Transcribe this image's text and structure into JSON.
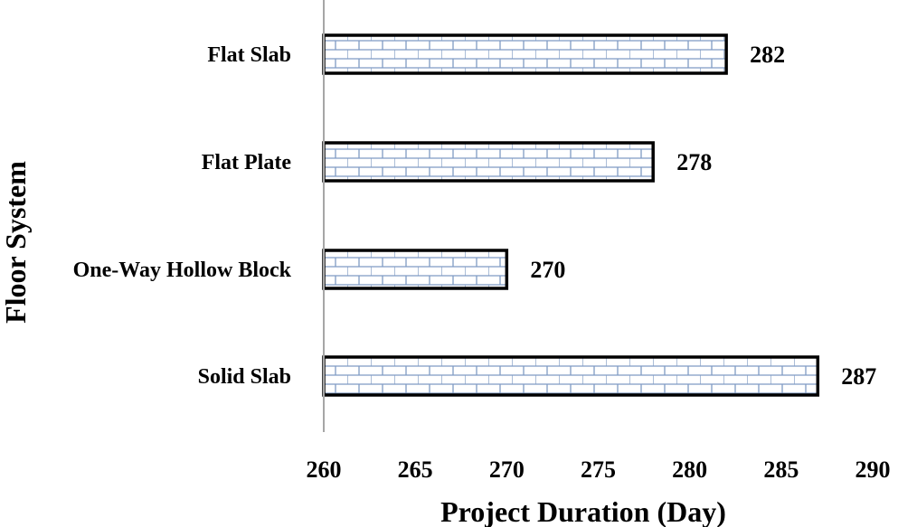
{
  "chart_data": {
    "type": "bar",
    "orientation": "horizontal",
    "categories": [
      "Flat Slab",
      "Flat Plate",
      "One-Way Hollow Block",
      "Solid Slab"
    ],
    "values": [
      282,
      278,
      270,
      287
    ],
    "data_labels": [
      "282",
      "278",
      "270",
      "287"
    ],
    "xlabel": "Project Duration (Day)",
    "ylabel": "Floor System",
    "xlim": [
      260,
      290
    ],
    "xticks": [
      "260",
      "265",
      "270",
      "275",
      "280",
      "285",
      "290"
    ],
    "grid": false,
    "legend": "none",
    "bar_pattern": "brick",
    "colors": {
      "bar_fill": "#ffffff",
      "bar_pattern": "#7f9bc4",
      "bar_border": "#000000",
      "axis": "#a6a6a6"
    }
  }
}
